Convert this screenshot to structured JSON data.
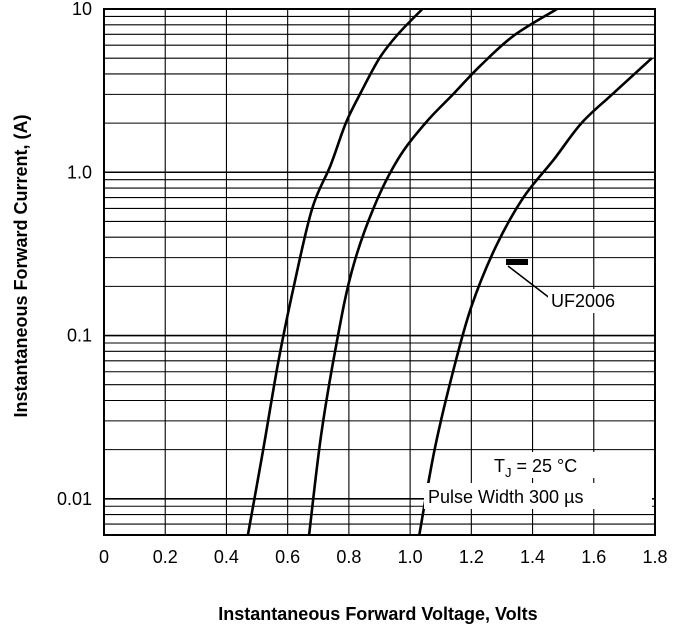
{
  "chart_data": {
    "type": "line",
    "title": "",
    "xlabel": "Instantaneous Forward Voltage, Volts",
    "ylabel": "Instantaneous Forward Current, (A)",
    "x_ticks": [
      0,
      0.2,
      0.4,
      0.6,
      0.8,
      1.0,
      1.2,
      1.4,
      1.6,
      1.8
    ],
    "x_tick_labels": [
      "0",
      "0.2",
      "0.4",
      "0.6",
      "0.8",
      "1.0",
      "1.2",
      "1.4",
      "1.6",
      "1.8"
    ],
    "y_ticks": [
      0.01,
      0.1,
      1.0,
      10
    ],
    "y_tick_labels": [
      "0.01",
      "0.1",
      "1.0",
      "10"
    ],
    "xlim": [
      0,
      1.8
    ],
    "ylim": [
      0.006,
      10
    ],
    "y_scale": "log",
    "grid": true,
    "series": [
      {
        "x": [
          0.47,
          0.52,
          0.57,
          0.62,
          0.68,
          0.74,
          0.79,
          0.84,
          0.9,
          0.96,
          1.04
        ],
        "y": [
          0.006,
          0.02,
          0.07,
          0.2,
          0.6,
          1.1,
          2.0,
          3.1,
          5.0,
          7.0,
          10
        ]
      },
      {
        "x": [
          0.67,
          0.71,
          0.76,
          0.81,
          0.88,
          0.96,
          1.05,
          1.14,
          1.23,
          1.34,
          1.48
        ],
        "y": [
          0.006,
          0.025,
          0.09,
          0.25,
          0.6,
          1.2,
          2.0,
          3.0,
          4.5,
          6.9,
          10
        ]
      },
      {
        "x": [
          1.03,
          1.08,
          1.14,
          1.2,
          1.28,
          1.37,
          1.47,
          1.56,
          1.66,
          1.79
        ],
        "y": [
          0.006,
          0.02,
          0.06,
          0.15,
          0.35,
          0.7,
          1.2,
          2.0,
          3.0,
          5.0
        ]
      }
    ],
    "annotations": {
      "part": "UF2006",
      "tj_prefix": "T",
      "tj_sub": "J",
      "tj_rest": " = 25 °C",
      "pulse": "Pulse Width 300 µs"
    }
  }
}
